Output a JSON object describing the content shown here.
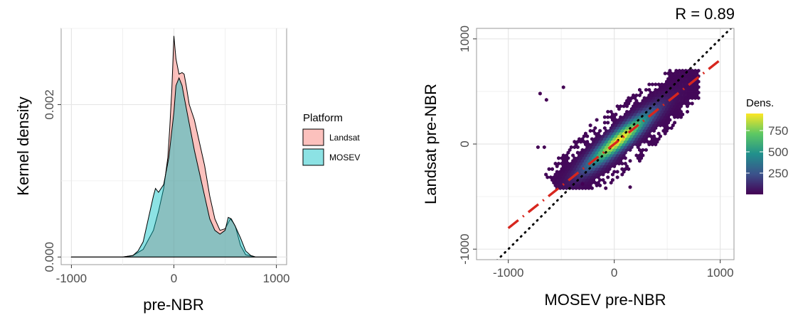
{
  "chart_data": [
    {
      "type": "area",
      "xlabel": "pre-NBR",
      "ylabel": "Kernel density",
      "xlim": [
        -1100,
        1100
      ],
      "ylim": [
        -0.0001,
        0.003
      ],
      "x_ticks": [
        -1000,
        0,
        1000
      ],
      "x_tick_labels": [
        "-1000",
        "0",
        "1000"
      ],
      "y_ticks": [
        0,
        0.002
      ],
      "y_tick_labels": [
        "0.000",
        "0.002"
      ],
      "grid": true,
      "legend": {
        "title": "Platform",
        "position": "right"
      },
      "series": [
        {
          "name": "Landsat",
          "color": "#F8766D",
          "x": [
            -1000,
            -500,
            -400,
            -300,
            -200,
            -150,
            -100,
            -60,
            -40,
            -20,
            0,
            20,
            50,
            80,
            100,
            120,
            150,
            200,
            250,
            300,
            350,
            400,
            450,
            500,
            550,
            580,
            600,
            650,
            700,
            800,
            1000
          ],
          "y": [
            0,
            0,
            2e-05,
            0.0001,
            0.00035,
            0.0006,
            0.0009,
            0.0013,
            0.0017,
            0.0022,
            0.0029,
            0.0026,
            0.0024,
            0.00242,
            0.0024,
            0.00225,
            0.002,
            0.0018,
            0.0015,
            0.0012,
            0.0008,
            0.0005,
            0.00035,
            0.00037,
            0.0005,
            0.00045,
            0.0004,
            0.00015,
            3e-05,
            0,
            0
          ]
        },
        {
          "name": "MOSEV",
          "color": "#00BFC4",
          "x": [
            -1000,
            -500,
            -450,
            -400,
            -350,
            -300,
            -250,
            -200,
            -180,
            -150,
            -100,
            -50,
            0,
            20,
            50,
            80,
            100,
            150,
            200,
            250,
            300,
            350,
            400,
            450,
            500,
            530,
            560,
            600,
            650,
            700,
            750,
            800,
            1000
          ],
          "y": [
            0,
            0,
            1e-05,
            2e-05,
            8e-05,
            0.0002,
            0.0005,
            0.0008,
            0.0009,
            0.00085,
            0.00095,
            0.0013,
            0.0019,
            0.00225,
            0.00235,
            0.00225,
            0.0021,
            0.00175,
            0.0014,
            0.0011,
            0.0008,
            0.0005,
            0.00035,
            0.0003,
            0.00035,
            0.00052,
            0.0005,
            0.0004,
            0.00025,
            8e-05,
            2e-05,
            0,
            0
          ]
        }
      ]
    },
    {
      "type": "heatmap",
      "xlabel": "MOSEV pre-NBR",
      "ylabel": "Landsat pre-NBR",
      "annotation": "R = 0.89",
      "xlim": [
        -1300,
        1130
      ],
      "ylim": [
        -1100,
        1100
      ],
      "x_ticks": [
        -1000,
        0,
        1000
      ],
      "x_tick_labels": [
        "-1000",
        "0",
        "1000"
      ],
      "y_ticks": [
        -1000,
        0,
        1000
      ],
      "y_tick_labels": [
        "-1000",
        "0",
        "1000"
      ],
      "grid": true,
      "colorbar": {
        "title": "Dens.",
        "range": [
          0,
          950
        ],
        "ticks": [
          250,
          500,
          750
        ],
        "tick_labels": [
          "250",
          "500",
          "750"
        ],
        "palette": [
          "#440154",
          "#3B528B",
          "#21908C",
          "#5DC863",
          "#FDE725"
        ]
      },
      "reference_lines": [
        {
          "name": "identity",
          "style": "dotted",
          "color": "#000000",
          "slope": 1,
          "intercept": 0
        },
        {
          "name": "regression",
          "style": "dashdot",
          "color": "#D7261E",
          "slope": 0.8,
          "intercept": 0
        }
      ],
      "density_cloud": {
        "x_range": [
          -720,
          800
        ],
        "y_range": [
          -420,
          700
        ],
        "peak": [
          0,
          0
        ],
        "peak_density": 950,
        "trend_slope": 0.85
      }
    }
  ]
}
